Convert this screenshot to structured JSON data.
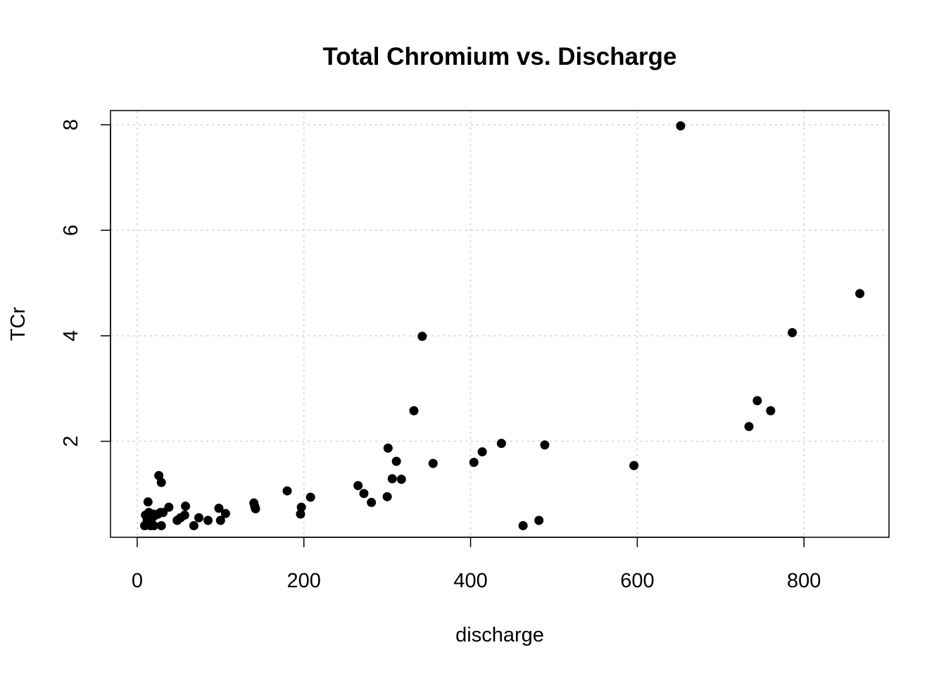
{
  "chart_data": {
    "type": "scatter",
    "title": "Total Chromium vs. Discharge",
    "xlabel": "discharge",
    "ylabel": "TCr",
    "xlim": [
      -32,
      902
    ],
    "ylim": [
      0.18,
      8.27
    ],
    "xticks": [
      0,
      200,
      400,
      600,
      800
    ],
    "yticks": [
      2,
      4,
      6,
      8
    ],
    "xtick_labels": [
      "0",
      "200",
      "400",
      "600",
      "800"
    ],
    "ytick_labels": [
      "2",
      "4",
      "6",
      "8"
    ],
    "grid": true,
    "marker_color": "#000000",
    "points": [
      {
        "x": 9,
        "y": 0.4
      },
      {
        "x": 10,
        "y": 0.6
      },
      {
        "x": 12,
        "y": 0.5
      },
      {
        "x": 13,
        "y": 0.85
      },
      {
        "x": 14,
        "y": 0.65
      },
      {
        "x": 16,
        "y": 0.4
      },
      {
        "x": 18,
        "y": 0.55
      },
      {
        "x": 19,
        "y": 0.62
      },
      {
        "x": 20,
        "y": 0.4
      },
      {
        "x": 22,
        "y": 0.6
      },
      {
        "x": 25,
        "y": 0.62
      },
      {
        "x": 26,
        "y": 1.35
      },
      {
        "x": 28,
        "y": 0.65
      },
      {
        "x": 29,
        "y": 0.4
      },
      {
        "x": 29,
        "y": 1.22
      },
      {
        "x": 31,
        "y": 0.65
      },
      {
        "x": 38,
        "y": 0.75
      },
      {
        "x": 48,
        "y": 0.5
      },
      {
        "x": 52,
        "y": 0.55
      },
      {
        "x": 57,
        "y": 0.6
      },
      {
        "x": 58,
        "y": 0.77
      },
      {
        "x": 68,
        "y": 0.4
      },
      {
        "x": 74,
        "y": 0.55
      },
      {
        "x": 85,
        "y": 0.5
      },
      {
        "x": 98,
        "y": 0.73
      },
      {
        "x": 100,
        "y": 0.5
      },
      {
        "x": 106,
        "y": 0.63
      },
      {
        "x": 140,
        "y": 0.83
      },
      {
        "x": 141,
        "y": 0.77
      },
      {
        "x": 142,
        "y": 0.72
      },
      {
        "x": 180,
        "y": 1.06
      },
      {
        "x": 196,
        "y": 0.62
      },
      {
        "x": 197,
        "y": 0.75
      },
      {
        "x": 208,
        "y": 0.94
      },
      {
        "x": 265,
        "y": 1.16
      },
      {
        "x": 272,
        "y": 1.01
      },
      {
        "x": 281,
        "y": 0.84
      },
      {
        "x": 300,
        "y": 0.95
      },
      {
        "x": 301,
        "y": 1.87
      },
      {
        "x": 306,
        "y": 1.29
      },
      {
        "x": 311,
        "y": 1.62
      },
      {
        "x": 317,
        "y": 1.28
      },
      {
        "x": 332,
        "y": 2.58
      },
      {
        "x": 342,
        "y": 3.99
      },
      {
        "x": 355,
        "y": 1.58
      },
      {
        "x": 404,
        "y": 1.6
      },
      {
        "x": 414,
        "y": 1.8
      },
      {
        "x": 437,
        "y": 1.96
      },
      {
        "x": 463,
        "y": 0.4
      },
      {
        "x": 482,
        "y": 0.5
      },
      {
        "x": 489,
        "y": 1.93
      },
      {
        "x": 596,
        "y": 1.54
      },
      {
        "x": 652,
        "y": 7.98
      },
      {
        "x": 734,
        "y": 2.28
      },
      {
        "x": 744,
        "y": 2.77
      },
      {
        "x": 760,
        "y": 2.58
      },
      {
        "x": 786,
        "y": 4.06
      },
      {
        "x": 867,
        "y": 4.8
      }
    ]
  }
}
